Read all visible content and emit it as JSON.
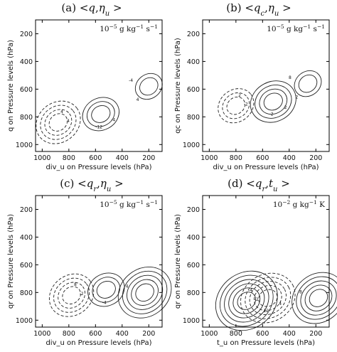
{
  "chart_data": [
    {
      "type": "contour",
      "title": "(a) < q, η_u >",
      "title_parts": {
        "prefix": "(a)  <",
        "v1": "q",
        "sep": ",",
        "v2": "η",
        "v2sub": "u",
        "suffix": " >"
      },
      "units": {
        "base": "10",
        "exp": "−5",
        "rest": " g kg",
        "exp2": "−1",
        "rest2": " s",
        "exp3": "−1"
      },
      "xlabel": "div_u on Pressure levels (hPa)",
      "ylabel": "q on Pressure levels (hPa)",
      "xticks": [
        1000,
        800,
        600,
        400,
        200
      ],
      "yticks": [
        200,
        400,
        600,
        800,
        1000
      ],
      "xlim": [
        1050,
        100
      ],
      "ylim": [
        1050,
        100
      ],
      "features": [
        {
          "sign": "negative",
          "x": 880,
          "y": 840,
          "levels": 4
        },
        {
          "sign": "positive",
          "x": 560,
          "y": 780,
          "levels": 3
        },
        {
          "sign": "positive",
          "x": 200,
          "y": 580,
          "levels": 2
        }
      ],
      "contour_labels": [
        "4",
        "-12",
        "-4",
        "4",
        "-4",
        "4"
      ]
    },
    {
      "type": "contour",
      "title": "(b) < q_c, η_u >",
      "title_parts": {
        "prefix": "(b)  <",
        "v1": "q",
        "v1sub": "c",
        "sep": ",",
        "v2": "η",
        "v2sub": "u",
        "suffix": " >"
      },
      "units": {
        "base": "10",
        "exp": "−5",
        "rest": " g kg",
        "exp2": "−1",
        "rest2": " s",
        "exp3": "−1"
      },
      "xlabel": "div_u on Pressure levels (hPa)",
      "ylabel": "qc on Pressure levels (hPa)",
      "xticks": [
        1000,
        800,
        600,
        400,
        200
      ],
      "yticks": [
        200,
        400,
        600,
        800,
        1000
      ],
      "xlim": [
        1050,
        100
      ],
      "ylim": [
        1050,
        100
      ],
      "features": [
        {
          "sign": "negative",
          "x": 800,
          "y": 720,
          "levels": 3
        },
        {
          "sign": "positive",
          "x": 520,
          "y": 690,
          "levels": 4
        },
        {
          "sign": "positive",
          "x": 260,
          "y": 560,
          "levels": 2
        }
      ],
      "contour_labels": [
        "-2",
        "-2",
        "8",
        "2",
        "2",
        "2"
      ]
    },
    {
      "type": "contour",
      "title": "(c) < q_r, η_u >",
      "title_parts": {
        "prefix": "(c)  <",
        "v1": "q",
        "v1sub": "r",
        "sep": ",",
        "v2": "η",
        "v2sub": "u",
        "suffix": " >"
      },
      "units": {
        "base": "10",
        "exp": "−5",
        "rest": " g kg",
        "exp2": "−1",
        "rest2": " s",
        "exp3": "−1"
      },
      "xlabel": "div_u on Pressure levels (hPa)",
      "ylabel": "qr on Pressure levels (hPa)",
      "xticks": [
        1000,
        800,
        600,
        400,
        200
      ],
      "yticks": [
        200,
        400,
        600,
        800,
        1000
      ],
      "xlim": [
        1050,
        100
      ],
      "ylim": [
        1050,
        100
      ],
      "features": [
        {
          "sign": "negative",
          "x": 780,
          "y": 820,
          "levels": 4
        },
        {
          "sign": "positive",
          "x": 520,
          "y": 780,
          "levels": 3
        },
        {
          "sign": "positive",
          "x": 230,
          "y": 800,
          "levels": 5
        }
      ],
      "contour_labels": [
        "-2",
        "-4",
        "4",
        "8"
      ]
    },
    {
      "type": "contour",
      "title": "(d) < q_r, t_u >",
      "title_parts": {
        "prefix": "(d)  <",
        "v1": "q",
        "v1sub": "r",
        "sep": ",",
        "v2": "t",
        "v2sub": "u",
        "suffix": " >"
      },
      "units": {
        "base": "10",
        "exp": "−2",
        "rest": " g kg",
        "exp2": "−1",
        "rest2": " K",
        "exp3": ""
      },
      "xlabel": "t_u on Pressure levels (hPa)",
      "ylabel": "qr on Pressure levels (hPa)",
      "xticks": [
        1000,
        800,
        600,
        400,
        200
      ],
      "yticks": [
        200,
        400,
        600,
        800,
        1000
      ],
      "xlim": [
        1050,
        100
      ],
      "ylim": [
        1050,
        100
      ],
      "features": [
        {
          "sign": "positive",
          "x": 720,
          "y": 860,
          "levels": 6
        },
        {
          "sign": "negative",
          "x": 560,
          "y": 840,
          "levels": 5
        },
        {
          "sign": "positive",
          "x": 180,
          "y": 840,
          "levels": 5
        }
      ],
      "contour_labels": [
        "-2",
        "12",
        "8",
        "-4",
        "4"
      ]
    }
  ]
}
